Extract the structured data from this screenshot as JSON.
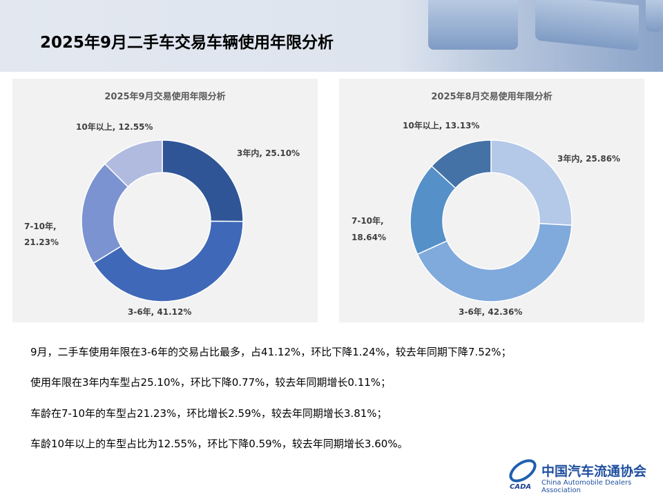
{
  "page_title": "2025年9月二手车交易车辆使用年限分析",
  "chart_data": [
    {
      "type": "pie",
      "donut": true,
      "title": "2025年9月交易使用年限分析",
      "categories": [
        "3年内",
        "3-6年",
        "7-10年",
        "10年以上"
      ],
      "values": [
        25.1,
        41.12,
        21.23,
        12.55
      ],
      "labels": [
        "3年内, 25.10%",
        "3-6年, 41.12%",
        "7-10年,",
        "21.23%",
        "10年以上, 12.55%"
      ],
      "colors": [
        "#2f5597",
        "#4068b8",
        "#7b93d0",
        "#b1bbe0"
      ]
    },
    {
      "type": "pie",
      "donut": true,
      "title": "2025年8月交易使用年限分析",
      "categories": [
        "3年内",
        "3-6年",
        "7-10年",
        "10年以上"
      ],
      "values": [
        25.86,
        42.36,
        18.64,
        13.13
      ],
      "labels": [
        "3年内, 25.86%",
        "3-6年, 42.36%",
        "7-10年,",
        "18.64%",
        "10年以上, 13.13%"
      ],
      "colors": [
        "#b4c8e8",
        "#80aadc",
        "#5590c8",
        "#4472a6"
      ]
    }
  ],
  "notes": [
    "9月，二手车使用年限在3-6年的交易占比最多，占41.12%，环比下降1.24%，较去年同期下降7.52%；",
    "使用年限在3年内车型占25.10%，环比下降0.77%，较去年同期增长0.11%；",
    "车龄在7-10年的车型占21.23%，环比增长2.59%，较去年同期增长3.81%；",
    "车龄10年以上的车型占比为12.55%，环比下降0.59%，较去年同期增长3.60%。"
  ],
  "logo": {
    "cn": "中国汽车流通协会",
    "en": "China Automobile Dealers Association",
    "mark": "CADA"
  }
}
